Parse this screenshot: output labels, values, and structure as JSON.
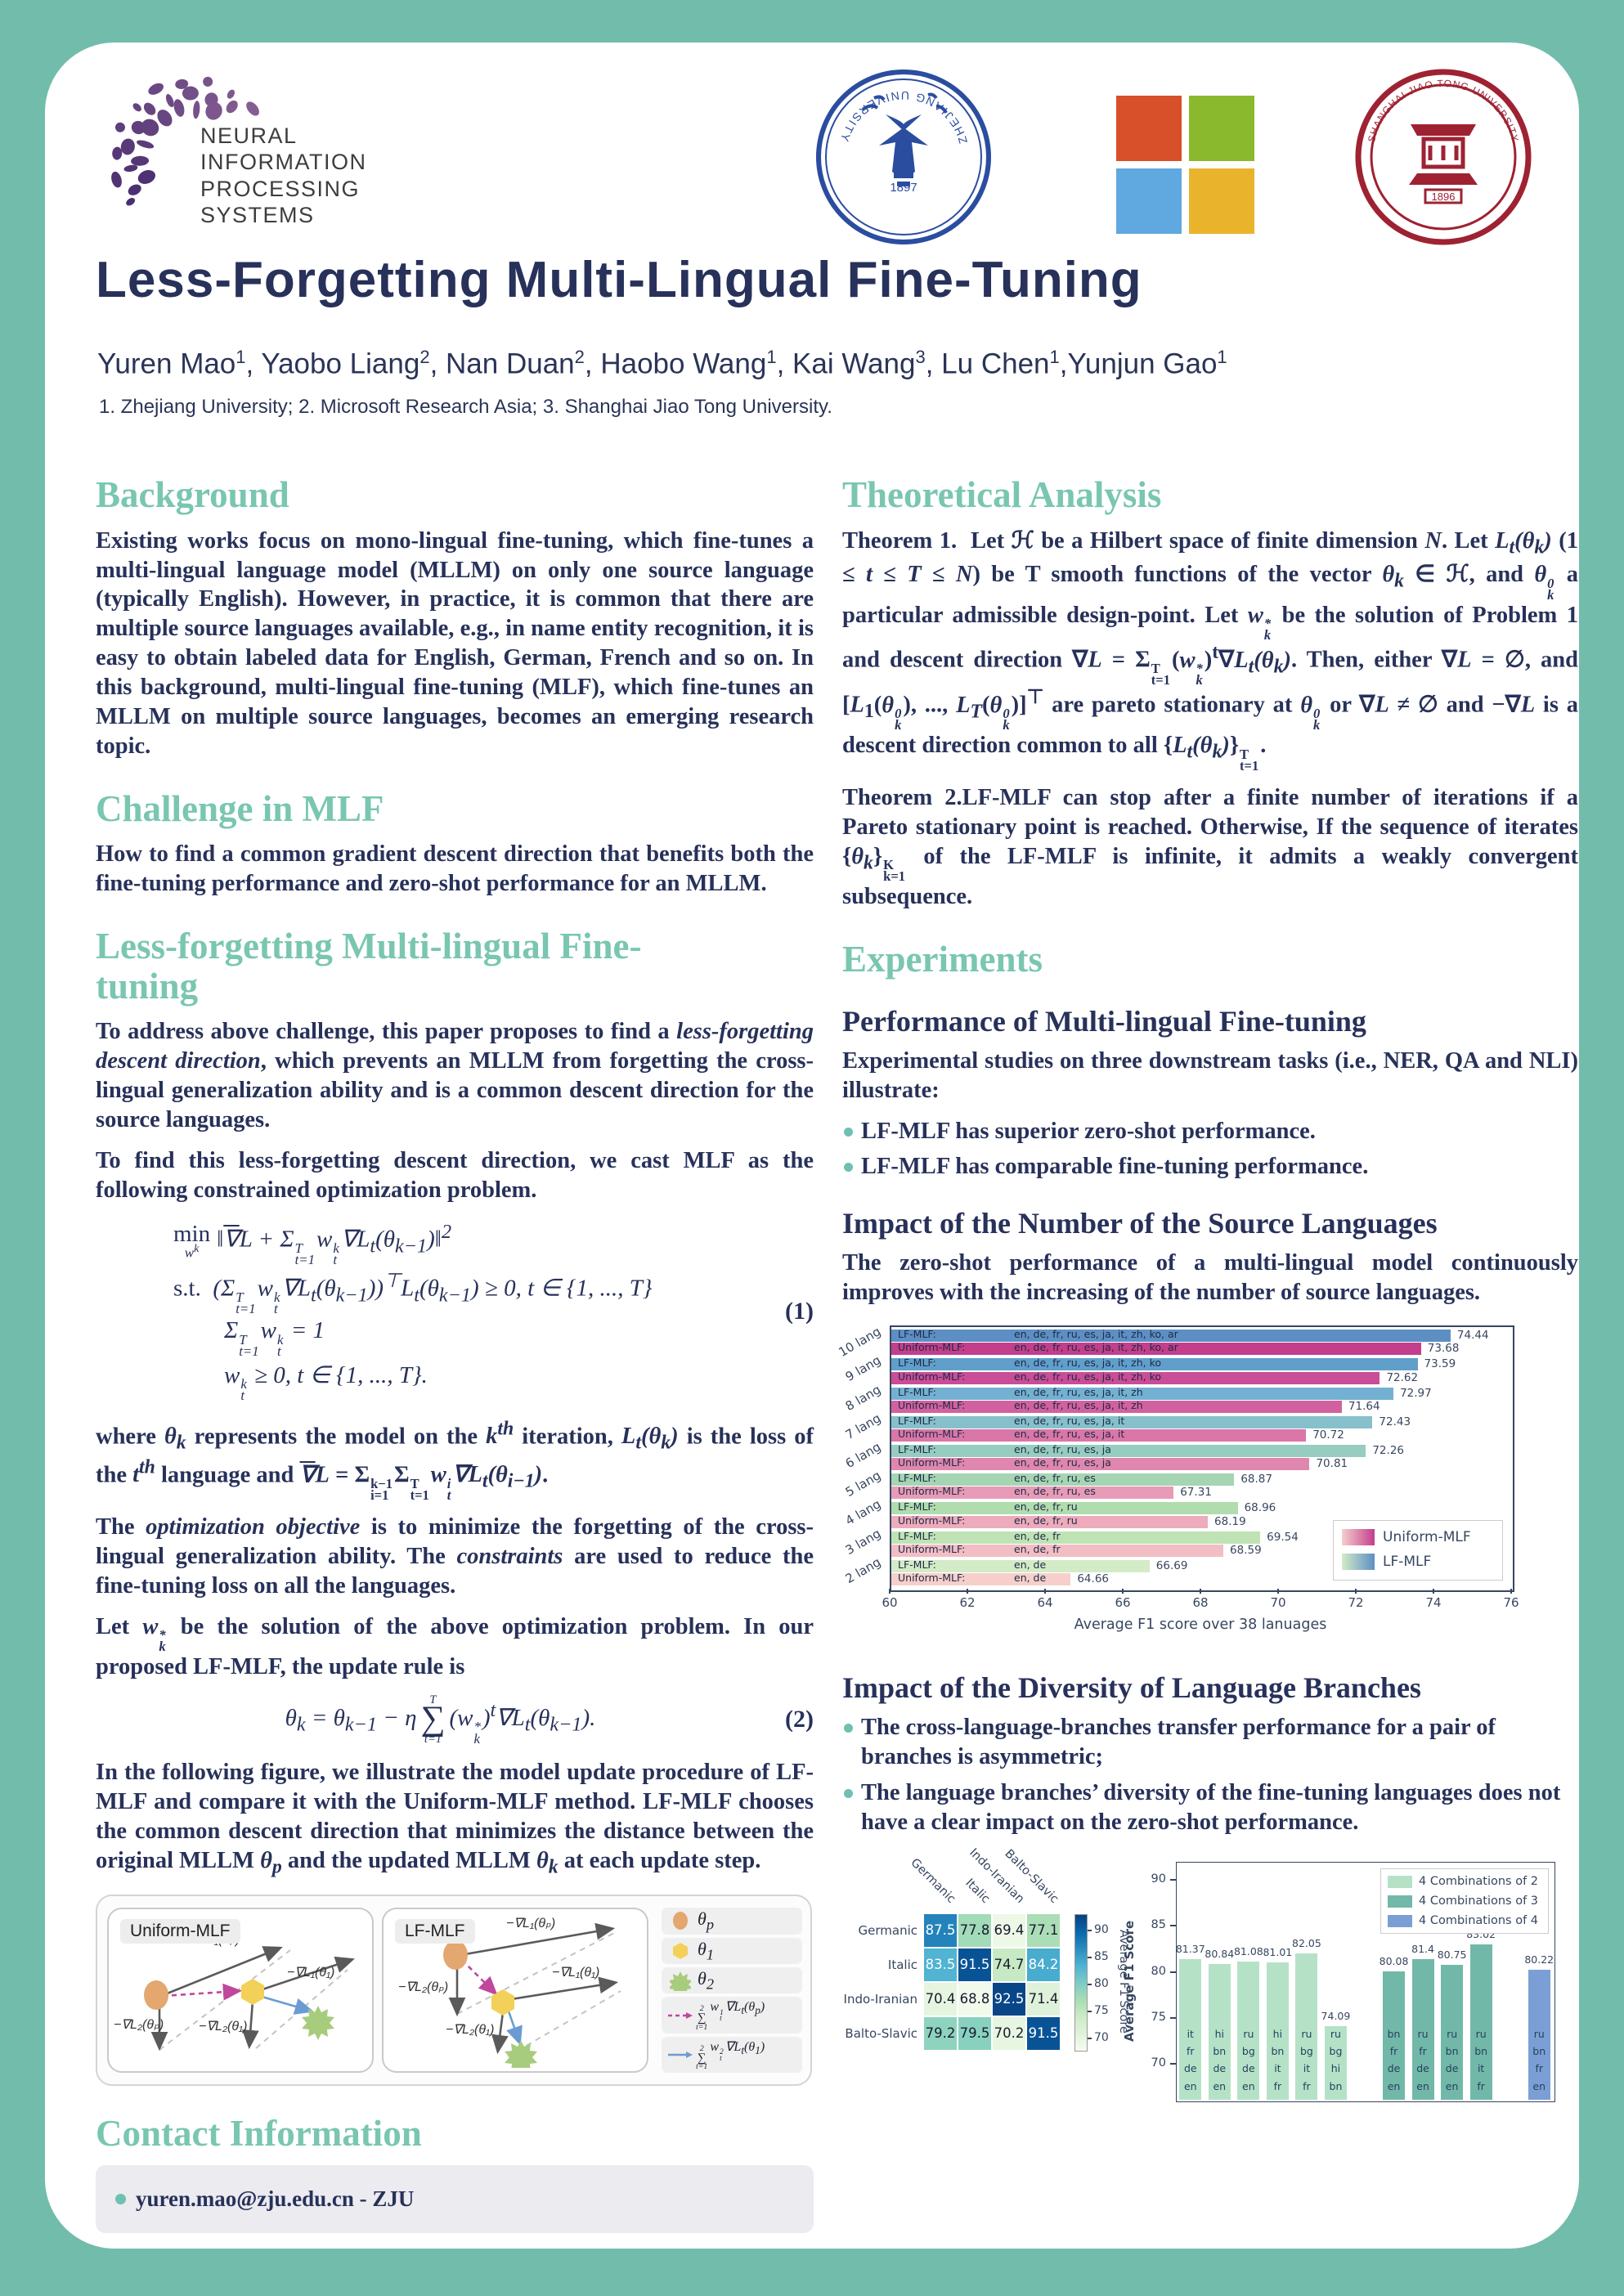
{
  "page": {
    "background": "#72bcab",
    "card_bg": "#ffffff",
    "accent_teal": "#79c6b1",
    "navy": "#27315a"
  },
  "header": {
    "neurips_lines": [
      "NEURAL",
      "INFORMATION",
      "PROCESSING",
      "SYSTEMS"
    ],
    "zju": {
      "arc_text": "ZHEJIANG UNIVERSITY",
      "year": "1897"
    },
    "microsoft_colors": [
      "#d8502a",
      "#8ab92e",
      "#5fa9e0",
      "#e9b32c"
    ],
    "sjtu": {
      "arc_text": "SHANGHAI JIAO TONG UNIVERSITY",
      "year": "1896"
    }
  },
  "title": "Less-Forgetting Multi-Lingual Fine-Tuning",
  "authors_html": "Yuren Mao<sup>1</sup>, Yaobo Liang<sup>2</sup>, Nan Duan<sup>2</sup>, Haobo Wang<sup>1</sup>, Kai Wang<sup>3</sup>, Lu Chen<sup>1</sup>,Yunjun Gao<sup>1</sup>",
  "affiliations": "1. Zhejiang University; 2. Microsoft Research Asia; 3. Shanghai Jiao Tong University.",
  "left": {
    "background_heading": "Background",
    "background_body": "Existing works focus on mono-lingual fine-tuning, which fine-tunes a multi-lingual language model (MLLM) on only one source language (typically English). However, in practice, it is common that there are multiple source languages available, e.g., in name entity recognition, it is easy to obtain labeled data for English, German, French and so on.  In this background, multi-lingual fine-tuning (MLF), which fine-tunes an MLLM on multiple source languages, becomes an emerging research topic.",
    "challenge_heading": "Challenge in MLF",
    "challenge_body": "How to find a common gradient descent direction that benefits both the fine-tuning performance and zero-shot performance for an MLLM.",
    "lf_heading": "Less-forgetting Multi-lingual Fine-tuning",
    "p1_html": "To address above challenge, this paper proposes to find a <i>less-forgetting descent direction</i>, which prevents an MLLM from forgetting the cross-lingual generalization ability and is a common descent direction for the source languages.",
    "p2_html": "To find this less-forgetting descent direction, we cast MLF as the following constrained optimization problem.",
    "eq1_lines": [
      "<span class=\"minop\"><span class=\"up\">min</span><span class=\"minsub\">w<sup>k</sup></span></span>‖<span class=\"ovl\">∇</span>L + Σ<span class=\"stk\"><span>T</span><span>t=1</span></span>w<span class=\"stk\"><span>k</span><span>t</span></span>∇L<sub>t</sub>(θ<sub>k−1</sub>)‖<sup>2</sup>",
      "<span class=\"up\">s.t.</span>&nbsp; (Σ<span class=\"stk\"><span>T</span><span>t=1</span></span>w<span class=\"stk\"><span>k</span><span>t</span></span>∇L<sub>t</sub>(θ<sub>k−1</sub>))<sup>⊤</sup>L<sub>t</sub>(θ<sub>k−1</sub>) ≥ 0, t ∈ {1, ..., T}",
      "Σ<span class=\"stk\"><span>T</span><span>t=1</span></span>w<span class=\"stk\"><span>k</span><span>t</span></span> = 1",
      "w<span class=\"stk\"><span>k</span><span>t</span></span> ≥ 0, t ∈ {1, ..., T}."
    ],
    "eq1_no": "(1)",
    "p3_html": "where <i>θ<sub>k</sub></i> represents the model on the <i>k<sup>th</sup></i> iteration, <i>L<sub>t</sub>(θ<sub>k</sub>)</i> is the loss of the <i>t<sup>th</sup></i> language and <i><span class=\"ovl\">∇</span>L</i> = Σ<span class=\"stk\"><span>k−1</span><span>i=1</span></span>Σ<span class=\"stk\"><span>T</span><span>t=1</span></span><i>w<span class=\"stk\"><span>i</span><span>t</span></span>∇L<sub>t</sub>(θ<sub>i−1</sub>)</i>.",
    "p4_html": "The <i>optimization objective</i> is to minimize the forgetting of the cross-lingual generalization ability. The <i>constraints</i> are used to reduce the fine-tuning loss on all the languages.",
    "p5_html": " Let <i>w<span class=\"stk\"><span>*</span><span>k</span></span></i> be the solution of the above optimization problem. In our proposed LF-MLF, the update rule is",
    "eq2_html": "θ<sub>k</sub> = θ<sub>k−1</sub> − η<span class=\"bigsum\"><span class=\"bt\">T</span><span class=\"sg\">∑</span><span class=\"bb\">t=1</span></span>(w<span class=\"stk\"><span>*</span><span>k</span></span>)<sup>t</sup>∇L<sub>t</sub>(θ<sub>k−1</sub>).",
    "eq2_no": "(2)",
    "p6_html": " In the following figure, we illustrate the model update procedure of LF-MLF and compare it with the Uniform-MLF method.  LF-MLF chooses the common descent direction that minimizes the distance between the original MLLM <i>θ<sub>p</sub></i> and the updated MLLM <i>θ<sub>k</sub></i> at each update step.",
    "contact_heading": "Contact Information",
    "contact_email": "yuren.mao@zju.edu.cn - ZJU"
  },
  "figure1": {
    "panel1_label": "Uniform-MLF",
    "panel2_label": "LF-MLF",
    "lbl_l1p": "−∇L₁(θₚ)",
    "lbl_l2p": "−∇L₂(θₚ)",
    "lbl_l1t": "−∇L₁(θ₁)",
    "lbl_l2t": "−∇L₂(θ₁)",
    "legend_theta_p_html": "θ<sub>p</sub>",
    "legend_theta_1_html": "θ<sub>1</sub>",
    "legend_theta_2_html": "θ<sub>2</sub>",
    "legend_sum1_html": "<span class=\"lsum\"><span>2</span><span class=\"ls\">∑</span><span>t=1</span></span>w<span class=\"stk\"><span>1</span><span>t</span></span>∇L<sub>t</sub>(θ<sub>p</sub>)",
    "legend_sum2_html": "<span class=\"lsum\"><span>2</span><span class=\"ls\">∑</span><span>t=1</span></span>w<span class=\"stk\"><span>2</span><span>t</span></span>∇L<sub>t</sub>(θ<sub>1</sub>)",
    "colors": {
      "theta_p": "#e3a76f",
      "theta_1": "#f3d158",
      "theta_2": "#a8cc7e",
      "arrow": "#5a5a5a",
      "dashed": "#c3c3c3",
      "magenta": "#c0479c",
      "blue": "#6b9bd2"
    }
  },
  "right": {
    "theory_heading": "Theoretical Analysis",
    "theorem1_html": "<b>Theorem 1.</b>&nbsp; Let ℋ be a Hilbert space of finite dimension <i>N</i>.  Let <i>L<sub>t</sub>(θ<sub>k</sub>)</i> (1 ≤ <i>t</i> ≤ <i>T</i> ≤ <i>N</i>) be T smooth functions of the vector <i>θ<sub>k</sub></i> ∈ ℋ, and <i>θ<span class=\"stk\"><span>0</span><span>k</span></span></i> a particular admissible design-point.  Let <i>w<span class=\"stk\"><span>*</span><span>k</span></span></i> be the solution of Problem 1 and descent direction ∇<i>L</i> = Σ<span class=\"stk\"><span>T</span><span>t=1</span></span>(<i>w<span class=\"stk\"><span>*</span><span>k</span></span></i>)<sup>t</sup>∇<i>L<sub>t</sub>(θ<sub>k</sub>)</i>.  Then, either ∇<i>L</i> = ∅, and [<i>L</i><sub>1</sub>(<i>θ<span class=\"stk\"><span>0</span><span>k</span></span></i>), ..., <i>L<sub>T</sub></i>(<i>θ<span class=\"stk\"><span>0</span><span>k</span></span></i>)]<sup>⊤</sup> are pareto stationary at <i>θ<span class=\"stk\"><span>0</span><span>k</span></span></i> or ∇<i>L</i> ≠ ∅ and −∇<i>L</i> is a descent direction common to all {<i>L<sub>t</sub>(θ<sub>k</sub>)</i>}<span class=\"stk\"><span>T</span><span>t=1</span></span>.",
    "theorem2_html": "<b>Theorem 2.</b>LF-MLF can stop after a finite number of iterations if a Pareto stationary point is reached.  Otherwise, If the sequence of iterates {<i>θ<sub>k</sub></i>}<span class=\"stk\"><span>K</span><span>k=1</span></span> of the LF-MLF is infinite, it admits a weakly convergent subsequence.",
    "experiments_heading": "Experiments",
    "perf_subheading": "Performance of Multi-lingual Fine-tuning",
    "perf_body": "Experimental studies on three downstream tasks (i.e., NER, QA and NLI) illustrate:",
    "perf_bullets": [
      "LF-MLF has superior zero-shot performance.",
      "LF-MLF has comparable fine-tuning performance."
    ],
    "impact_num_subheading": "Impact of the Number of the Source Languages",
    "impact_num_body": " The zero-shot performance of a multi-lingual model continuously improves with the increasing of the number of source languages.",
    "impact_div_subheading": "Impact of the Diversity of Language Branches",
    "impact_div_bullets": [
      "The cross-language-branches transfer performance for a pair of branches is asymmetric;",
      "The language branches’ diversity of the fine-tuning languages does not have a clear impact on the zero-shot performance."
    ]
  },
  "chart_data": [
    {
      "type": "bar",
      "orientation": "horizontal",
      "xlabel": "Average F1 score over 38 lanuages",
      "xlim": [
        60,
        76
      ],
      "xticks": [
        60,
        62,
        64,
        66,
        68,
        70,
        72,
        74,
        76
      ],
      "groups": [
        "10 lang",
        "9 lang",
        "8 lang",
        "7 lang",
        "6 lang",
        "5 lang",
        "4 lang",
        "3 lang",
        "2 lang"
      ],
      "series": [
        {
          "name": "LF-MLF",
          "values": [
            74.44,
            73.59,
            72.97,
            72.43,
            72.26,
            68.87,
            68.96,
            69.54,
            66.69
          ],
          "languages": [
            "en, de, fr, ru, es, ja, it, zh, ko, ar",
            "en, de, fr, ru, es, ja, it, zh, ko",
            "en, de, fr, ru, es, ja, it, zh",
            "en, de, fr, ru, es, ja, it",
            "en, de, fr, ru, es, ja",
            "en, de, fr, ru, es",
            "en, de, fr, ru",
            "en, de, fr",
            "en, de"
          ],
          "colors": [
            "#5d8fc4",
            "#619fcb",
            "#74b0d2",
            "#86c0cb",
            "#97ccc0",
            "#a5d5b3",
            "#b1dcae",
            "#c0e3b5",
            "#d3ebc7"
          ]
        },
        {
          "name": "Uniform-MLF",
          "values": [
            73.68,
            72.62,
            71.64,
            70.72,
            70.81,
            67.31,
            68.19,
            68.59,
            64.66
          ],
          "languages": [
            "en, de, fr, ru, es, ja, it, zh, ko, ar",
            "en, de, fr, ru, es, ja, it, zh, ko",
            "en, de, fr, ru, es, ja, it, zh",
            "en, de, fr, ru, es, ja, it",
            "en, de, fr, ru, es, ja",
            "en, de, fr, ru, es",
            "en, de, fr, ru",
            "en, de, fr",
            "en, de"
          ],
          "colors": [
            "#c33e8d",
            "#ca4d97",
            "#d2619f",
            "#da76a8",
            "#df87ae",
            "#e79bb6",
            "#edabbc",
            "#f2bdc4",
            "#f6cfcb"
          ]
        }
      ],
      "legend": [
        {
          "label": "Uniform-MLF",
          "gradient": [
            "#f6cfcb",
            "#c33e8d"
          ]
        },
        {
          "label": "LF-MLF",
          "gradient": [
            "#d3ebc7",
            "#5d8fc4"
          ]
        }
      ]
    },
    {
      "type": "heatmap",
      "rows": [
        "Germanic",
        "Italic",
        "Indo-Iranian",
        "Balto-Slavic"
      ],
      "cols": [
        "Germanic",
        "Italic",
        "Indo-Iranian",
        "Balto-Slavic"
      ],
      "values": [
        [
          87.5,
          77.8,
          69.4,
          77.1
        ],
        [
          83.5,
          91.5,
          74.7,
          84.2
        ],
        [
          70.4,
          68.8,
          92.5,
          71.4
        ],
        [
          79.2,
          79.5,
          70.2,
          91.5
        ]
      ],
      "vmin": 68,
      "vmax": 93,
      "colorbar_label": "Average F1 Score",
      "colorbar_ticks": [
        70,
        75,
        80,
        85,
        90
      ]
    },
    {
      "type": "bar",
      "orientation": "vertical",
      "ylabel": "Average F1 Score",
      "ylim": [
        66,
        92
      ],
      "yticks": [
        70,
        75,
        80,
        85,
        90
      ],
      "series": [
        {
          "name": "4 Combinations of 2",
          "color": "#b5e2c7",
          "bars": [
            {
              "langs": [
                "it",
                "fr",
                "de",
                "en"
              ],
              "value": 81.37
            },
            {
              "langs": [
                "hi",
                "bn",
                "de",
                "en"
              ],
              "value": 80.84
            },
            {
              "langs": [
                "ru",
                "bg",
                "de",
                "en"
              ],
              "value": 81.08
            },
            {
              "langs": [
                "hi",
                "bn",
                "it",
                "fr"
              ],
              "value": 81.01
            },
            {
              "langs": [
                "ru",
                "bg",
                "it",
                "fr"
              ],
              "value": 82.05
            },
            {
              "langs": [
                "ru",
                "bg",
                "hi",
                "bn"
              ],
              "value": 74.09
            }
          ]
        },
        {
          "name": "4 Combinations of 3",
          "color": "#72b8a8",
          "bars": [
            {
              "langs": [
                "bn",
                "fr",
                "de",
                "en"
              ],
              "value": 80.08
            },
            {
              "langs": [
                "ru",
                "fr",
                "de",
                "en"
              ],
              "value": 81.4
            },
            {
              "langs": [
                "ru",
                "bn",
                "de",
                "en"
              ],
              "value": 80.75
            },
            {
              "langs": [
                "ru",
                "bn",
                "it",
                "fr"
              ],
              "value": 83.02
            }
          ]
        },
        {
          "name": "4 Combinations of 4",
          "color": "#7b9fd4",
          "bars": [
            {
              "langs": [
                "ru",
                "bn",
                "fr",
                "en"
              ],
              "value": 80.22
            }
          ]
        }
      ]
    }
  ]
}
